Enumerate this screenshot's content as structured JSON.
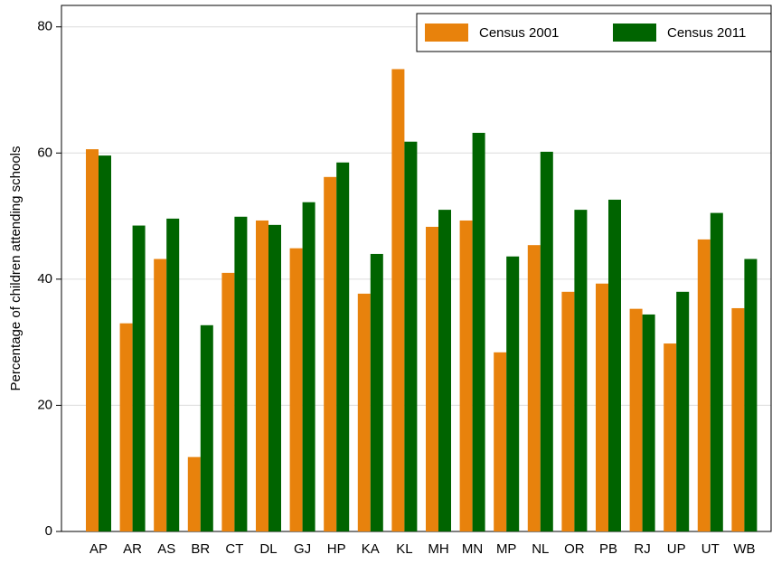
{
  "chart_data": {
    "type": "bar",
    "y_label": "Percentage of children attending schools",
    "categories": [
      "AP",
      "AR",
      "AS",
      "BR",
      "CT",
      "DL",
      "GJ",
      "HP",
      "KA",
      "KL",
      "MH",
      "MN",
      "MP",
      "NL",
      "OR",
      "PB",
      "RJ",
      "UP",
      "UT",
      "WB"
    ],
    "series": [
      {
        "name": "Census 2001",
        "color": "#e8820c",
        "values": [
          60.6,
          33.0,
          43.2,
          11.8,
          41.0,
          49.3,
          44.9,
          56.2,
          37.7,
          73.3,
          48.3,
          49.3,
          28.4,
          45.4,
          38.0,
          39.3,
          35.3,
          29.8,
          46.3,
          35.4
        ]
      },
      {
        "name": "Census 2011",
        "color": "#006400",
        "values": [
          59.6,
          48.5,
          49.6,
          32.7,
          49.9,
          48.6,
          52.2,
          58.5,
          44.0,
          61.8,
          51.0,
          63.2,
          43.6,
          60.2,
          51.0,
          52.6,
          34.4,
          38.0,
          50.5,
          43.2
        ]
      }
    ],
    "ylim": [
      0,
      83.4
    ],
    "yticks": [
      0,
      20,
      40,
      60,
      80
    ],
    "grid": true
  }
}
